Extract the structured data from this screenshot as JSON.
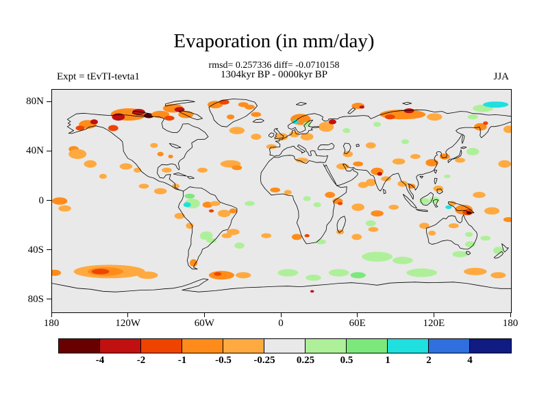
{
  "header": {
    "title": "Evaporation (in mm/day)",
    "stats": "rmsd= 0.257336 diff= -0.0710158",
    "period": "1304kyr BP - 0000kyr BP",
    "experiment": "Expt = tEvTI-tevta1",
    "season": "JJA"
  },
  "axes": {
    "lat_ticks": [
      {
        "label": "80N",
        "lat": 80
      },
      {
        "label": "40N",
        "lat": 40
      },
      {
        "label": "0",
        "lat": 0
      },
      {
        "label": "40S",
        "lat": -40
      },
      {
        "label": "80S",
        "lat": -80
      }
    ],
    "lon_ticks": [
      {
        "label": "180",
        "lon": -180
      },
      {
        "label": "120W",
        "lon": -120
      },
      {
        "label": "60W",
        "lon": -60
      },
      {
        "label": "0",
        "lon": 0
      },
      {
        "label": "60E",
        "lon": 60
      },
      {
        "label": "120E",
        "lon": 120
      },
      {
        "label": "180",
        "lon": 180
      }
    ]
  },
  "colorbar": {
    "labels": [
      "-4",
      "-2",
      "-1",
      "-0.5",
      "-0.25",
      "0.25",
      "0.5",
      "1",
      "2",
      "4"
    ],
    "colors": [
      "#680000",
      "#c01010",
      "#ee4400",
      "#ff8c1a",
      "#ffaa40",
      "#e9e9e9",
      "#aef09a",
      "#7ce87c",
      "#20dfdf",
      "#2f6fde",
      "#101c82"
    ]
  },
  "chart_data": {
    "type": "heatmap",
    "subtype": "filled-contour-world-map",
    "title": "Evaporation (in mm/day)",
    "units": "mm/day",
    "season": "JJA",
    "experiment": "tEvTI-tevta1",
    "difference": "1304kyr BP - 0000kyr BP",
    "rmsd": 0.257336,
    "diff_mean": -0.0710158,
    "contour_levels": [
      -4,
      -2,
      -1,
      -0.5,
      -0.25,
      0.25,
      0.5,
      1,
      2,
      4
    ],
    "lon_range": [
      -180,
      180
    ],
    "lat_range": [
      -90,
      90
    ],
    "map_background": "#e9e9e9",
    "patch_format": "[lon_center, lat_center, rx_deg, ry_deg, palette_index]",
    "anomaly_patches": [
      [
        -120,
        70,
        14,
        5,
        3
      ],
      [
        -128,
        68,
        5,
        3,
        1
      ],
      [
        -112,
        72,
        5,
        2.5,
        1
      ],
      [
        -104,
        69,
        4,
        2,
        0
      ],
      [
        -95,
        70,
        7,
        3,
        3
      ],
      [
        -88,
        67,
        4,
        2,
        2
      ],
      [
        -85,
        75,
        8,
        3.5,
        3
      ],
      [
        -75,
        70,
        6,
        3,
        3
      ],
      [
        -80,
        74,
        4,
        2,
        1
      ],
      [
        -152,
        62,
        7,
        3.5,
        3
      ],
      [
        -158,
        59,
        3.5,
        2,
        2
      ],
      [
        -147,
        64,
        3,
        2,
        1
      ],
      [
        -132,
        59,
        4,
        2.5,
        2
      ],
      [
        -52,
        78,
        6,
        3,
        3
      ],
      [
        -45,
        80,
        4,
        2,
        2
      ],
      [
        -30,
        78,
        4,
        2,
        3
      ],
      [
        -25,
        76,
        4,
        2,
        3
      ],
      [
        -40,
        68,
        3,
        2,
        3
      ],
      [
        -20,
        70,
        4,
        2,
        3
      ],
      [
        -35,
        57,
        6,
        3,
        4
      ],
      [
        -20,
        52,
        4,
        2.5,
        4
      ],
      [
        15,
        66,
        8,
        4.5,
        3
      ],
      [
        11,
        64,
        2.5,
        1.8,
        8
      ],
      [
        20,
        62,
        3,
        2,
        6
      ],
      [
        0,
        52,
        5,
        3,
        4
      ],
      [
        10,
        54,
        4,
        2.5,
        4
      ],
      [
        20,
        52,
        5,
        3,
        4
      ],
      [
        -8,
        44,
        4,
        2,
        4
      ],
      [
        16,
        33,
        5,
        2,
        4
      ],
      [
        35,
        60,
        6,
        4,
        4
      ],
      [
        40,
        64,
        3,
        2,
        1
      ],
      [
        51,
        57,
        3,
        2,
        6
      ],
      [
        52,
        38,
        4,
        2.5,
        4
      ],
      [
        60,
        77,
        5,
        2.5,
        3
      ],
      [
        63,
        76,
        2,
        1.2,
        1
      ],
      [
        75,
        62,
        3,
        2,
        6
      ],
      [
        95,
        70,
        18,
        4,
        3
      ],
      [
        100,
        73,
        4,
        2,
        1
      ],
      [
        85,
        68,
        4,
        2,
        2
      ],
      [
        120,
        68,
        6,
        3,
        4
      ],
      [
        158,
        75,
        8,
        3,
        6
      ],
      [
        168,
        78,
        10,
        2.5,
        8
      ],
      [
        150,
        68,
        4,
        2,
        6
      ],
      [
        156,
        60,
        5,
        3,
        3
      ],
      [
        160,
        63,
        2,
        1.5,
        2
      ],
      [
        178,
        58,
        4,
        3,
        4
      ],
      [
        70,
        45,
        4,
        2.5,
        4
      ],
      [
        97,
        48,
        3,
        2,
        6
      ],
      [
        -163,
        42,
        4,
        2.5,
        3
      ],
      [
        -160,
        38,
        7,
        4,
        4
      ],
      [
        -150,
        30,
        5,
        3,
        4
      ],
      [
        -140,
        20,
        3,
        2,
        4
      ],
      [
        -122,
        28,
        5,
        2.5,
        4
      ],
      [
        -113,
        25,
        3,
        2,
        4
      ],
      [
        -100,
        45,
        3,
        2,
        4
      ],
      [
        -95,
        38,
        2.5,
        1.8,
        3
      ],
      [
        -87,
        36,
        2,
        1.5,
        3
      ],
      [
        -40,
        30,
        8,
        3,
        4
      ],
      [
        -35,
        27,
        4,
        2,
        3
      ],
      [
        -62,
        25,
        4,
        2,
        4
      ],
      [
        -90,
        25,
        4,
        2,
        4
      ],
      [
        -83,
        12,
        3,
        2,
        4
      ],
      [
        48,
        28,
        5,
        2.5,
        4
      ],
      [
        60,
        30,
        4,
        2,
        3
      ],
      [
        75,
        24,
        5,
        3,
        3
      ],
      [
        77,
        22,
        2,
        1.5,
        1
      ],
      [
        70,
        15,
        4,
        3,
        4
      ],
      [
        82,
        18,
        4,
        2,
        4
      ],
      [
        64,
        13,
        4,
        2.5,
        4
      ],
      [
        92,
        32,
        5,
        2.5,
        4
      ],
      [
        105,
        36,
        4,
        2,
        4
      ],
      [
        118,
        31,
        5,
        3,
        3
      ],
      [
        128,
        36,
        4,
        2.5,
        3
      ],
      [
        140,
        33,
        4,
        2,
        4
      ],
      [
        130,
        20,
        2.5,
        1.5,
        6
      ],
      [
        150,
        40,
        5,
        3,
        6
      ],
      [
        175,
        30,
        5,
        3,
        4
      ],
      [
        95,
        14,
        4,
        2.5,
        4
      ],
      [
        102,
        12,
        3,
        2,
        3
      ],
      [
        123,
        10,
        4,
        2.5,
        4
      ],
      [
        120,
        1,
        4,
        2.5,
        6
      ],
      [
        131,
        -5,
        2.5,
        1.5,
        8
      ],
      [
        112,
        0,
        4,
        2.5,
        6
      ],
      [
        143,
        -7,
        7,
        4,
        3
      ],
      [
        146,
        -9,
        4,
        2.5,
        2
      ],
      [
        147,
        -9.5,
        2,
        1.2,
        0
      ],
      [
        134,
        -2,
        3,
        2,
        4
      ],
      [
        155,
        5,
        5,
        2.5,
        4
      ],
      [
        165,
        -8,
        6,
        3,
        4
      ],
      [
        178,
        -15,
        4,
        2,
        3
      ],
      [
        -174,
        0,
        6,
        3,
        3
      ],
      [
        -170,
        -6,
        5,
        2.5,
        4
      ],
      [
        -95,
        8,
        5,
        2.5,
        4
      ],
      [
        -108,
        12,
        4,
        2,
        4
      ],
      [
        -70,
        -2,
        6,
        4,
        6
      ],
      [
        -74,
        -3,
        3,
        2,
        8
      ],
      [
        -72,
        4,
        4,
        2,
        7
      ],
      [
        -58,
        -3,
        4,
        2.5,
        3
      ],
      [
        -55,
        -8,
        2,
        1.3,
        2
      ],
      [
        -52,
        -2,
        4,
        2,
        4
      ],
      [
        -45,
        -10,
        5,
        3,
        4
      ],
      [
        -38,
        -8,
        3,
        2,
        3
      ],
      [
        -80,
        -12,
        4,
        2.5,
        4
      ],
      [
        -72,
        -20,
        3,
        2.5,
        4
      ],
      [
        -61,
        -29,
        2.5,
        2,
        8
      ],
      [
        -59,
        -28,
        5,
        3.5,
        6
      ],
      [
        -55,
        -32,
        4,
        2,
        6
      ],
      [
        -43,
        -28,
        4,
        2,
        4
      ],
      [
        -69,
        -50,
        3,
        3,
        3
      ],
      [
        -25,
        -2,
        4,
        2,
        6
      ],
      [
        -33,
        -36,
        4,
        2.5,
        6
      ],
      [
        -38,
        -25,
        5,
        2.5,
        4
      ],
      [
        -12,
        -28,
        4,
        2,
        4
      ],
      [
        -5,
        9,
        4,
        2,
        3
      ],
      [
        5,
        7,
        3,
        2,
        4
      ],
      [
        20,
        2,
        3,
        2,
        6
      ],
      [
        28,
        -3,
        3,
        2,
        6
      ],
      [
        38,
        5,
        4,
        2.5,
        3
      ],
      [
        44,
        0,
        4,
        2.5,
        3
      ],
      [
        46,
        -2,
        2,
        1.3,
        2
      ],
      [
        12,
        -29,
        4,
        2.5,
        3
      ],
      [
        20,
        -28,
        2,
        1.3,
        2
      ],
      [
        31,
        -33,
        4,
        2,
        6
      ],
      [
        46,
        -25,
        3,
        2,
        4
      ],
      [
        60,
        -5,
        5,
        3,
        4
      ],
      [
        75,
        -10,
        5,
        2.5,
        3
      ],
      [
        88,
        -5,
        4,
        2,
        4
      ],
      [
        70,
        -18,
        4,
        2.5,
        6
      ],
      [
        59,
        -29,
        4,
        2.5,
        4
      ],
      [
        72,
        -23,
        4,
        2,
        4
      ],
      [
        112,
        -20,
        4,
        2.5,
        4
      ],
      [
        118,
        -26,
        3,
        2,
        4
      ],
      [
        135,
        -20,
        4,
        2,
        4
      ],
      [
        147,
        -27,
        3,
        2,
        6
      ],
      [
        148,
        -35,
        4,
        2.5,
        6
      ],
      [
        160,
        -30,
        4,
        2,
        6
      ],
      [
        140,
        -43,
        6,
        2.5,
        6
      ],
      [
        170,
        -40,
        4,
        3,
        6
      ],
      [
        -135,
        -57,
        28,
        5.5,
        4
      ],
      [
        -138,
        -57,
        14,
        3.5,
        3
      ],
      [
        -142,
        -57,
        7,
        2.2,
        2
      ],
      [
        -105,
        -60,
        8,
        3,
        4
      ],
      [
        -47,
        -60,
        10,
        3.5,
        3
      ],
      [
        -50,
        -59,
        3,
        1.5,
        2
      ],
      [
        -30,
        -60,
        6,
        2.5,
        4
      ],
      [
        5,
        -58,
        8,
        3,
        6
      ],
      [
        25,
        -62,
        6,
        2.5,
        6
      ],
      [
        24,
        -73,
        1.5,
        1,
        1
      ],
      [
        45,
        -58,
        8,
        3,
        6
      ],
      [
        60,
        -60,
        6,
        2.5,
        7
      ],
      [
        75,
        -45,
        12,
        4,
        6
      ],
      [
        95,
        -48,
        8,
        3,
        6
      ],
      [
        110,
        -58,
        12,
        3.5,
        6
      ],
      [
        152,
        -57,
        9,
        3,
        4
      ],
      [
        170,
        -60,
        6,
        2.5,
        4
      ],
      [
        -178,
        -58,
        5,
        2.5,
        3
      ]
    ]
  }
}
